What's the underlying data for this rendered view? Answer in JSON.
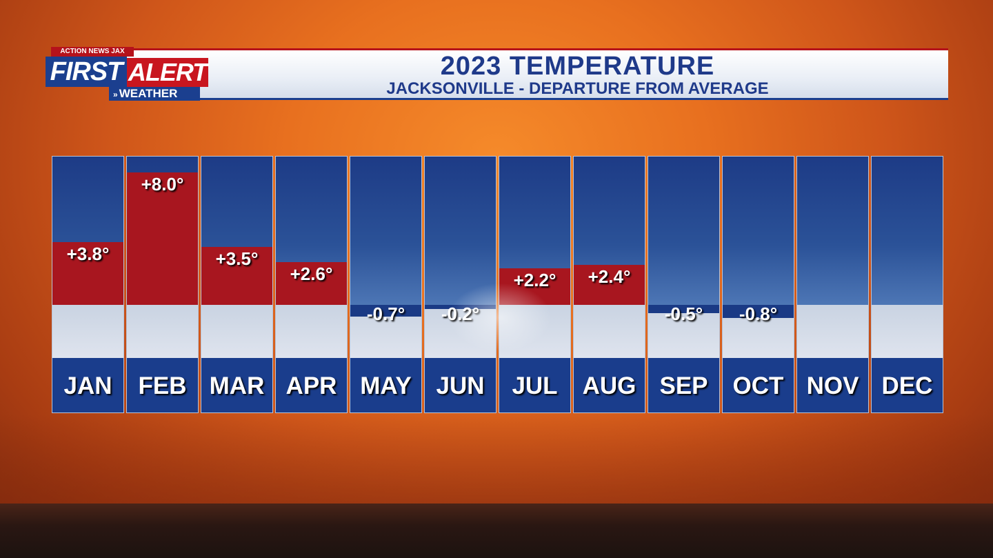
{
  "branding": {
    "station_top": "ACTION NEWS JAX",
    "first": "FIRST",
    "alert": "ALERT",
    "weather": "WEATHER"
  },
  "colors": {
    "positive_bar": "#a8161f",
    "negative_bar": "#1a3a85",
    "header_text": "#1f3a8a"
  },
  "chart_data": {
    "type": "bar",
    "title": "2023 TEMPERATURE",
    "subtitle": "JACKSONVILLE - DEPARTURE FROM AVERAGE",
    "categories": [
      "JAN",
      "FEB",
      "MAR",
      "APR",
      "MAY",
      "JUN",
      "JUL",
      "AUG",
      "SEP",
      "OCT",
      "NOV",
      "DEC"
    ],
    "values": [
      3.8,
      8.0,
      3.5,
      2.6,
      -0.7,
      -0.2,
      2.2,
      2.4,
      -0.5,
      -0.8,
      null,
      null
    ],
    "value_labels": [
      "+3.8°",
      "+8.0°",
      "+3.5°",
      "+2.6°",
      "-0.7°",
      "-0.2°",
      "+2.2°",
      "+2.4°",
      "-0.5°",
      "-0.8°",
      "",
      ""
    ],
    "ylim": [
      -1.7,
      8.8
    ],
    "grid": false,
    "legend": "none"
  }
}
